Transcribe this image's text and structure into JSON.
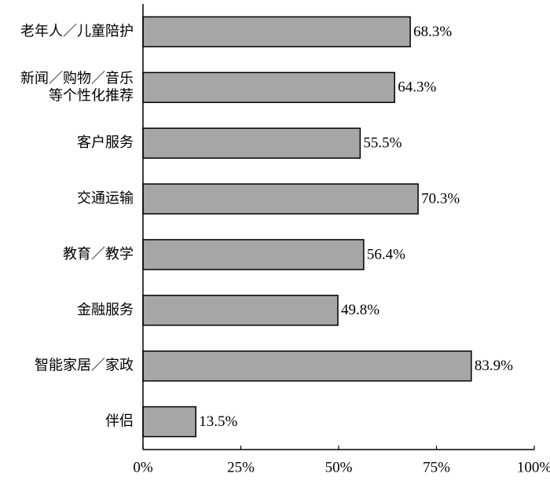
{
  "chart_data": {
    "type": "bar",
    "orientation": "horizontal",
    "categories": [
      "老年人／儿童陪护",
      "新闻／购物／音乐\n等个性化推荐",
      "客户服务",
      "交通运输",
      "教育／教学",
      "金融服务",
      "智能家居／家政",
      "伴侣"
    ],
    "values": [
      68.3,
      64.3,
      55.5,
      70.3,
      56.4,
      49.8,
      83.9,
      13.5
    ],
    "value_labels": [
      "68.3%",
      "64.3%",
      "55.5%",
      "70.3%",
      "56.4%",
      "49.8%",
      "83.9%",
      "13.5%"
    ],
    "color": "#a6a6a6",
    "xlim": [
      0,
      100
    ],
    "xticks": [
      {
        "value": 0,
        "label": "0%"
      },
      {
        "value": 25,
        "label": "25%"
      },
      {
        "value": 50,
        "label": "50%"
      },
      {
        "value": 75,
        "label": "75%"
      },
      {
        "value": 100,
        "label": "100%"
      }
    ],
    "grid": false
  }
}
